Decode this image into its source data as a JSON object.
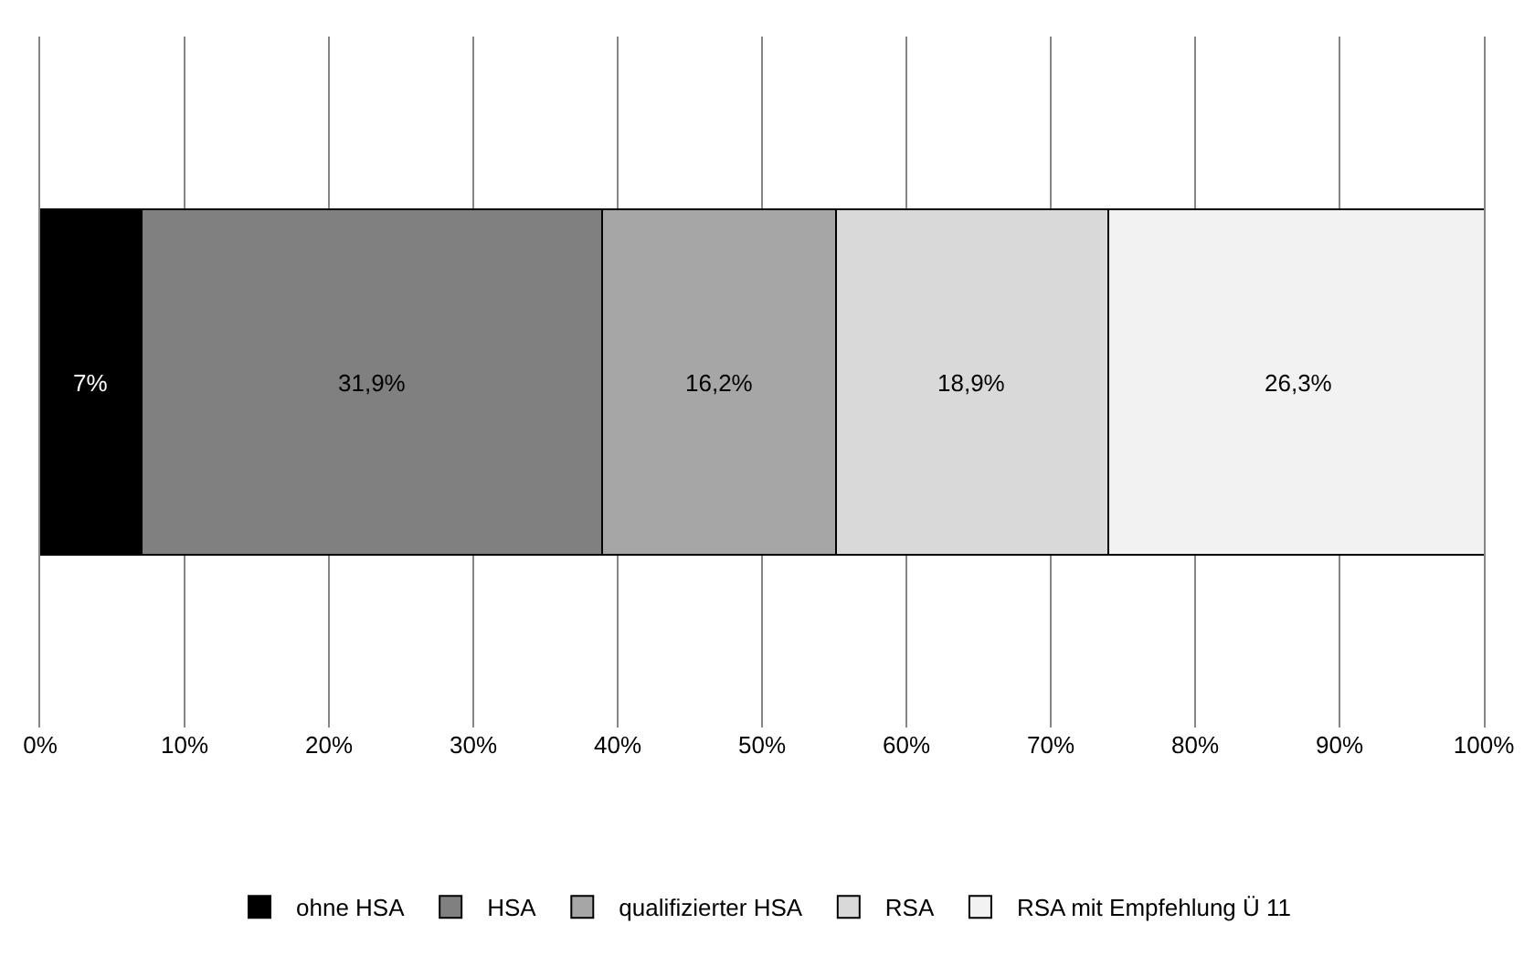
{
  "chart_data": {
    "type": "bar",
    "orientation": "horizontal",
    "stacked": true,
    "categories": [
      null
    ],
    "series": [
      {
        "name": "ohne HSA",
        "color": "#000000",
        "values": [
          7
        ],
        "value_labels": [
          "7%"
        ]
      },
      {
        "name": "HSA",
        "color": "#808080",
        "values": [
          31.9
        ],
        "value_labels": [
          "31,9%"
        ]
      },
      {
        "name": "qualifizierter HSA",
        "color": "#a6a6a6",
        "values": [
          16.2
        ],
        "value_labels": [
          "16,2%"
        ]
      },
      {
        "name": "RSA",
        "color": "#d9d9d9",
        "values": [
          18.9
        ],
        "value_labels": [
          "18,9%"
        ]
      },
      {
        "name": "RSA mit Empfehlung Ü 11",
        "color": "#f2f2f2",
        "values": [
          26.3
        ],
        "value_labels": [
          "26,3%"
        ]
      }
    ],
    "xlim": [
      0,
      100
    ],
    "xticks": [
      {
        "value": 0,
        "label": "0%"
      },
      {
        "value": 10,
        "label": "10%"
      },
      {
        "value": 20,
        "label": "20%"
      },
      {
        "value": 30,
        "label": "30%"
      },
      {
        "value": 40,
        "label": "40%"
      },
      {
        "value": 50,
        "label": "50%"
      },
      {
        "value": 60,
        "label": "60%"
      },
      {
        "value": 70,
        "label": "70%"
      },
      {
        "value": 80,
        "label": "80%"
      },
      {
        "value": 90,
        "label": "90%"
      },
      {
        "value": 100,
        "label": "100%"
      }
    ],
    "grid": "x",
    "legend": "bottom",
    "tick_labels": "x"
  }
}
